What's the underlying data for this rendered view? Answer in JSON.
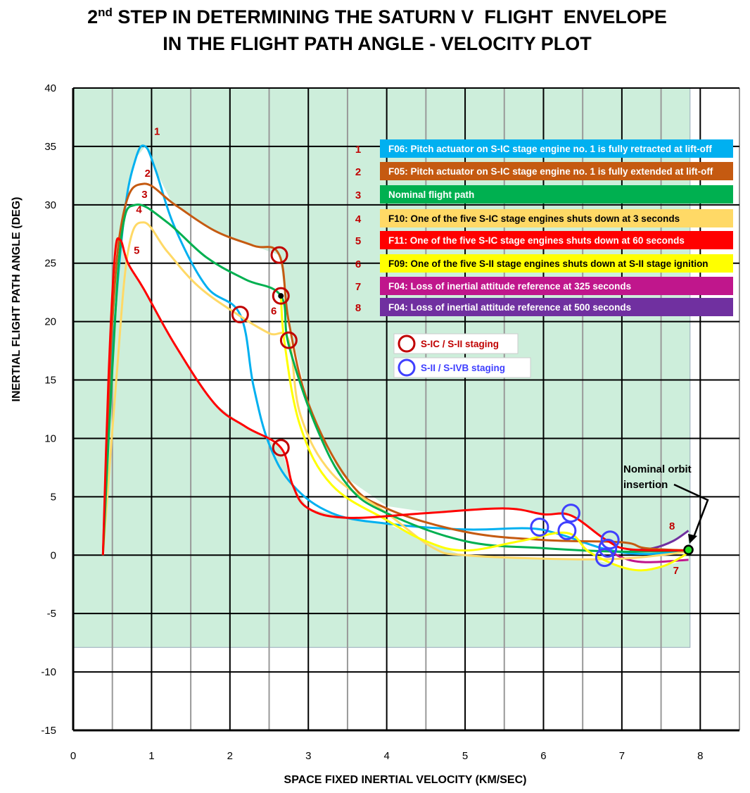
{
  "chart_data": {
    "type": "line",
    "title_line1_prefix": "2",
    "title_line1_sup": "nd",
    "title_line1_rest": " STEP IN DETERMINING THE SATURN V  FLIGHT  ENVELOPE",
    "title_line2": "IN THE FLIGHT PATH ANGLE - VELOCITY PLOT",
    "xlabel": "SPACE FIXED INERTIAL VELOCITY (KM/SEC)",
    "ylabel": "INERTIAL FLIGHT PATH ANGLE (DEG)",
    "xlim": [
      0,
      8.5
    ],
    "ylim": [
      -15,
      40
    ],
    "xticks": [
      "0",
      "1",
      "2",
      "3",
      "4",
      "5",
      "6",
      "7",
      "8"
    ],
    "yticks": [
      "40",
      "35",
      "30",
      "25",
      "20",
      "15",
      "10",
      "5",
      "0",
      "-5",
      "-10",
      "-15"
    ],
    "grid": true,
    "shaded_region": {
      "color": "#cdeedb",
      "x": [
        0,
        7.87
      ],
      "y": [
        -7.9,
        40
      ]
    },
    "envelope_color": "#ffffff",
    "legend_placement": "top-right",
    "series": [
      {
        "id": "1",
        "name": "F06:  Pitch actuator on S-IC stage engine no. 1 is fully retracted at lift-off",
        "color": "#00b0f0",
        "text_color": "#ffffff",
        "points": [
          [
            0.38,
            0
          ],
          [
            0.5,
            17
          ],
          [
            0.65,
            29
          ],
          [
            0.8,
            34
          ],
          [
            0.92,
            35
          ],
          [
            1.05,
            33
          ],
          [
            1.3,
            28
          ],
          [
            1.7,
            23
          ],
          [
            2.13,
            20.6
          ],
          [
            2.3,
            14.5
          ],
          [
            2.5,
            9.5
          ],
          [
            2.8,
            6
          ],
          [
            3.3,
            3.6
          ],
          [
            4,
            2.7
          ],
          [
            5,
            2.2
          ],
          [
            5.8,
            2.3
          ],
          [
            6.2,
            1.8
          ],
          [
            6.8,
            0.5
          ],
          [
            7.3,
            0.1
          ],
          [
            7.85,
            0.4
          ]
        ]
      },
      {
        "id": "2",
        "name": "F05:  Pitch actuator on S-IC stage engine no. 1 is fully extended at lift-off",
        "color": "#c55a11",
        "text_color": "#ffffff",
        "points": [
          [
            0.38,
            0
          ],
          [
            0.5,
            20
          ],
          [
            0.65,
            29.5
          ],
          [
            0.9,
            31.8
          ],
          [
            1.3,
            30
          ],
          [
            1.8,
            27.8
          ],
          [
            2.3,
            26.5
          ],
          [
            2.63,
            25.7
          ],
          [
            2.75,
            20
          ],
          [
            3.0,
            13
          ],
          [
            3.5,
            6.5
          ],
          [
            4,
            4
          ],
          [
            5,
            2
          ],
          [
            6,
            1.3
          ],
          [
            7,
            1.1
          ],
          [
            7.3,
            0.6
          ],
          [
            7.85,
            0.4
          ]
        ]
      },
      {
        "id": "3",
        "name": "Nominal flight path",
        "color": "#00b050",
        "text_color": "#ffffff",
        "points": [
          [
            0.38,
            0
          ],
          [
            0.5,
            16
          ],
          [
            0.62,
            27.5
          ],
          [
            0.8,
            30
          ],
          [
            1.2,
            28.5
          ],
          [
            1.7,
            25.5
          ],
          [
            2.2,
            23.6
          ],
          [
            2.65,
            22.2
          ],
          [
            2.75,
            18
          ],
          [
            3.1,
            11
          ],
          [
            3.5,
            6
          ],
          [
            4,
            3.6
          ],
          [
            5,
            1.2
          ],
          [
            6,
            0.6
          ],
          [
            7,
            0.3
          ],
          [
            7.85,
            0.4
          ]
        ]
      },
      {
        "id": "4",
        "name": "F10:  One of the five S-IC stage engines shuts down at 3 seconds",
        "color": "#ffd966",
        "text_color": "#000000",
        "points": [
          [
            0.38,
            0
          ],
          [
            0.55,
            15
          ],
          [
            0.7,
            26
          ],
          [
            0.9,
            28.5
          ],
          [
            1.2,
            26
          ],
          [
            1.6,
            23
          ],
          [
            2.1,
            20.6
          ],
          [
            2.5,
            19
          ],
          [
            2.75,
            18.4
          ],
          [
            2.9,
            12
          ],
          [
            3.3,
            7
          ],
          [
            4,
            3.6
          ],
          [
            4.6,
            0.6
          ],
          [
            5,
            0
          ],
          [
            6,
            -0.3
          ],
          [
            7,
            -0.3
          ],
          [
            7.85,
            0.3
          ]
        ]
      },
      {
        "id": "5",
        "name": "F11:  One of the five S-IC stage engines shuts down at 60 seconds",
        "color": "#ff0000",
        "text_color": "#ffffff",
        "points": [
          [
            0.38,
            0
          ],
          [
            0.45,
            15
          ],
          [
            0.53,
            25.5
          ],
          [
            0.6,
            27
          ],
          [
            0.7,
            25
          ],
          [
            0.9,
            22.8
          ],
          [
            1.3,
            18
          ],
          [
            1.8,
            13
          ],
          [
            2.2,
            11
          ],
          [
            2.65,
            9.2
          ],
          [
            2.8,
            6
          ],
          [
            3.0,
            4
          ],
          [
            3.5,
            3.2
          ],
          [
            4.5,
            3.6
          ],
          [
            5.5,
            4
          ],
          [
            6,
            3.5
          ],
          [
            6.35,
            3.4
          ],
          [
            6.8,
            1.3
          ],
          [
            7.1,
            0.5
          ],
          [
            7.85,
            0.4
          ]
        ]
      },
      {
        "id": "6",
        "name": "F09:  One of the five S-II stage engines shuts down at S-II stage ignition",
        "color": "#ffff00",
        "text_color": "#000000",
        "points": [
          [
            2.65,
            22.2
          ],
          [
            2.7,
            18
          ],
          [
            2.9,
            11
          ],
          [
            3.3,
            6
          ],
          [
            4,
            3
          ],
          [
            4.5,
            1.2
          ],
          [
            5,
            0.4
          ],
          [
            5.7,
            1.2
          ],
          [
            6.3,
            1.9
          ],
          [
            6.6,
            0.2
          ],
          [
            7.1,
            -1.2
          ],
          [
            7.5,
            -1
          ],
          [
            7.85,
            0.2
          ]
        ]
      },
      {
        "id": "7",
        "name": "F04:  Loss of inertial attitude reference at 325 seconds",
        "color": "#c0168c",
        "text_color": "#ffffff",
        "points": [
          [
            6.8,
            0.6
          ],
          [
            7.0,
            -0.2
          ],
          [
            7.3,
            -0.6
          ],
          [
            7.85,
            -0.4
          ]
        ]
      },
      {
        "id": "8",
        "name": "F04:  Loss of inertial attitude reference at 500 seconds",
        "color": "#7030a0",
        "text_color": "#ffffff",
        "points": [
          [
            7.1,
            0.4
          ],
          [
            7.4,
            0.6
          ],
          [
            7.65,
            1.2
          ],
          [
            7.85,
            2.1
          ]
        ]
      }
    ],
    "curve_labels": [
      {
        "text": "1",
        "at": [
          1.07,
          36.0
        ]
      },
      {
        "text": "2",
        "at": [
          0.95,
          32.4
        ]
      },
      {
        "text": "3",
        "at": [
          0.91,
          30.6
        ]
      },
      {
        "text": "4",
        "at": [
          0.84,
          29.3
        ]
      },
      {
        "text": "5",
        "at": [
          0.81,
          25.8
        ]
      },
      {
        "text": "6",
        "at": [
          2.56,
          20.6
        ]
      },
      {
        "text": "7",
        "at": [
          7.69,
          -1.6
        ]
      },
      {
        "text": "8",
        "at": [
          7.64,
          2.2
        ]
      }
    ],
    "staging_markers": {
      "sic_sii": {
        "label": "S-IC / S-II staging",
        "color": "#c00000",
        "points": [
          [
            2.63,
            25.7
          ],
          [
            2.65,
            22.2
          ],
          [
            2.13,
            20.6
          ],
          [
            2.75,
            18.4
          ],
          [
            2.65,
            9.2
          ]
        ]
      },
      "sii_sivb": {
        "label": "S-II / S-IVB staging",
        "color": "#4040ff",
        "points": [
          [
            5.95,
            2.4
          ],
          [
            6.35,
            3.6
          ],
          [
            6.3,
            2.1
          ],
          [
            6.85,
            1.3
          ],
          [
            6.82,
            0.6
          ],
          [
            6.78,
            -0.2
          ]
        ]
      }
    },
    "annotation": {
      "line1": "Nominal orbit",
      "line2": "insertion",
      "point": [
        7.85,
        0.45
      ],
      "point_color": "#22dd22"
    }
  }
}
